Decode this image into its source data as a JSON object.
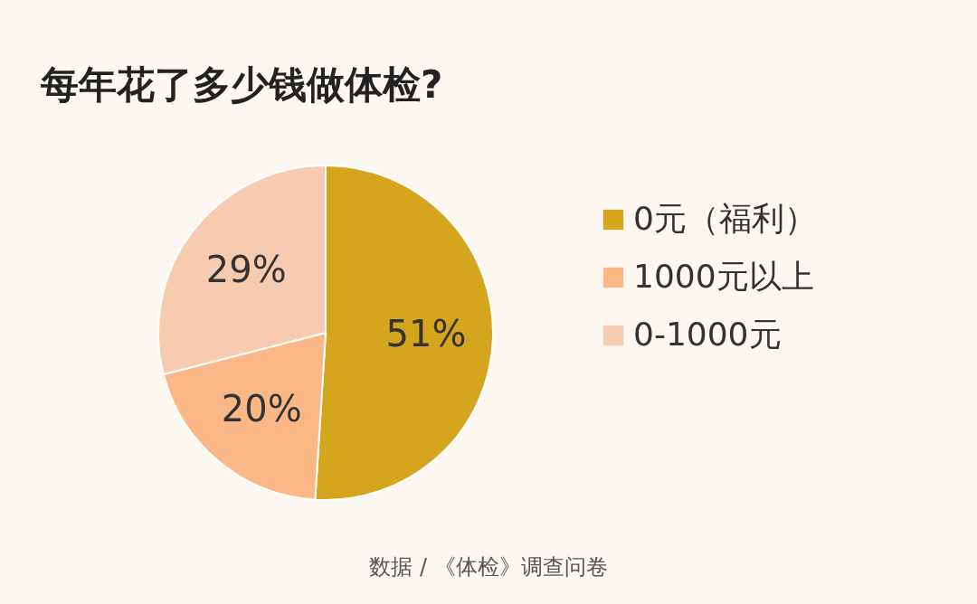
{
  "chart_data": {
    "type": "pie",
    "title": "每年花了多少钱做体检?",
    "categories": [
      "0元（福利）",
      "1000元以上",
      "0-1000元"
    ],
    "values": [
      51,
      20,
      29
    ],
    "colors": [
      "#d5a51d",
      "#fbb785",
      "#f6cbb0"
    ],
    "value_labels": [
      "51%",
      "20%",
      "29%"
    ],
    "legend": "right",
    "annotations": [
      "数据 / 《体检》调查问卷"
    ]
  }
}
